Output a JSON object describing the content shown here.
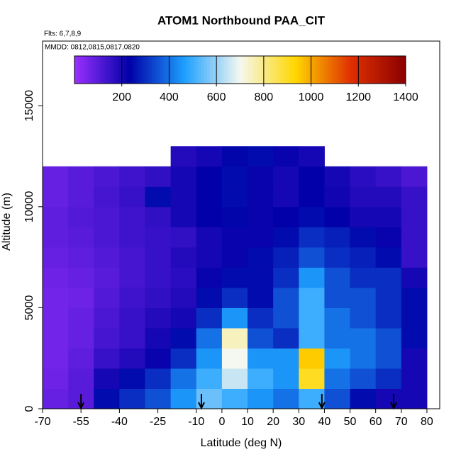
{
  "chart_data": {
    "type": "heatmap",
    "title": "ATOM1 Northbound PAA_CIT",
    "annotations": [
      "Flts: 6,7,8,9",
      "MMDD: 0812,0815,0817,0820"
    ],
    "x_label": "Latitude (deg N)",
    "y_label": "Altitude (m)",
    "xlim": [
      -70,
      85
    ],
    "ylim": [
      0,
      18200
    ],
    "xticks": [
      -70,
      -55,
      -40,
      -25,
      -10,
      0,
      10,
      20,
      30,
      40,
      50,
      60,
      70,
      80
    ],
    "yticks": [
      0,
      5000,
      10000,
      15000
    ],
    "lat_edges": [
      -70,
      -60,
      -50,
      -40,
      -30,
      -20,
      -10,
      0,
      10,
      20,
      30,
      40,
      50,
      60,
      70,
      80
    ],
    "alt_edges": [
      0,
      1000,
      2000,
      3000,
      4000,
      5000,
      6000,
      7000,
      8000,
      9000,
      10000,
      11000,
      12000,
      13000
    ],
    "z": [
      [
        80,
        100,
        250,
        300,
        350,
        450,
        550,
        500,
        450,
        400,
        500,
        350,
        250,
        200,
        200
      ],
      [
        70,
        100,
        200,
        250,
        300,
        400,
        500,
        650,
        500,
        450,
        900,
        400,
        350,
        300,
        200
      ],
      [
        60,
        90,
        150,
        180,
        220,
        300,
        450,
        700,
        450,
        450,
        950,
        450,
        400,
        350,
        200
      ],
      [
        60,
        80,
        130,
        150,
        200,
        250,
        400,
        750,
        350,
        300,
        500,
        400,
        400,
        350,
        250
      ],
      [
        60,
        80,
        120,
        150,
        180,
        200,
        300,
        450,
        300,
        350,
        500,
        400,
        350,
        300,
        250
      ],
      [
        60,
        70,
        110,
        140,
        160,
        180,
        250,
        300,
        250,
        350,
        500,
        350,
        350,
        300,
        250
      ],
      [
        70,
        80,
        100,
        130,
        150,
        170,
        220,
        250,
        250,
        300,
        450,
        350,
        300,
        300,
        200
      ],
      [
        80,
        90,
        110,
        130,
        150,
        180,
        200,
        220,
        250,
        280,
        350,
        300,
        280,
        250,
        150
      ],
      [
        90,
        100,
        120,
        140,
        150,
        160,
        200,
        220,
        220,
        250,
        300,
        280,
        250,
        220,
        150
      ],
      [
        90,
        110,
        120,
        140,
        160,
        200,
        230,
        240,
        220,
        230,
        250,
        230,
        200,
        200,
        150
      ],
      [
        80,
        100,
        130,
        150,
        250,
        200,
        230,
        250,
        220,
        200,
        230,
        210,
        180,
        180,
        150
      ],
      [
        80,
        100,
        120,
        140,
        160,
        200,
        230,
        250,
        220,
        200,
        230,
        200,
        170,
        150,
        120
      ],
      [
        null,
        null,
        null,
        null,
        null,
        180,
        200,
        240,
        250,
        220,
        200,
        null,
        null,
        null,
        null
      ]
    ],
    "zlim": [
      0,
      1400
    ],
    "colorbar_ticks": [
      200,
      400,
      600,
      800,
      1000,
      1200,
      1400
    ],
    "colorscale": [
      "#9b30ff",
      "#0000a8",
      "#1ea0ff",
      "#f5f8f0",
      "#ffd700",
      "#e03000",
      "#8b0000"
    ],
    "arrows_lat": [
      -55,
      -8,
      39,
      67
    ]
  }
}
